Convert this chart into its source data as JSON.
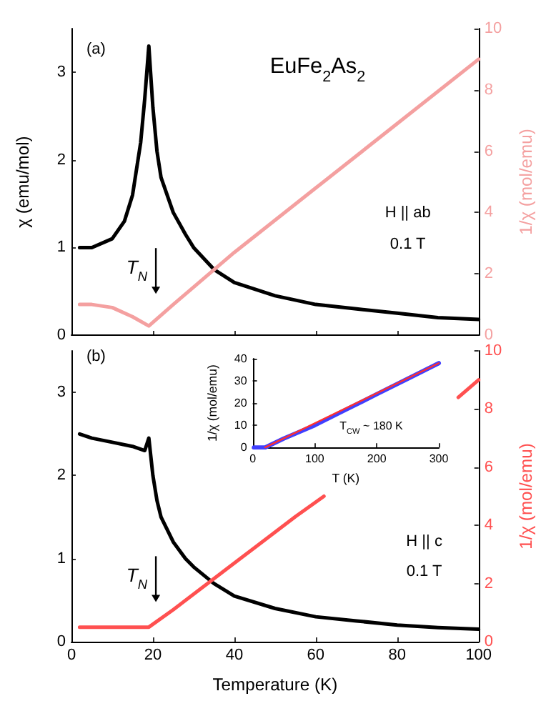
{
  "chart_data": [
    {
      "type": "line",
      "ylabel": "χ (emu/mol)",
      "y2label": "1/χ (mol/emu)",
      "xlim": [
        0,
        100
      ],
      "xticks": [
        {
          "value": 0,
          "label": null
        },
        {
          "value": 20,
          "label": null
        },
        {
          "value": 40,
          "label": null
        },
        {
          "value": 60,
          "label": null
        },
        {
          "value": 80,
          "label": null
        },
        {
          "value": 100,
          "label": null
        }
      ],
      "ylim": [
        0,
        3.5
      ],
      "yticks": [
        0,
        1,
        2,
        3
      ],
      "y2lim": [
        0,
        10
      ],
      "y2ticks": [
        0,
        2,
        4,
        6,
        8,
        10
      ],
      "tick_labels": "y",
      "line_style": "solid",
      "marker": "none",
      "annotations": [
        "(a)",
        "EuFe$_{2}$As$_{2}$",
        "T$_{N}$",
        "H || ab",
        "0.1 T"
      ],
      "series": [
        {
          "color": "#000000",
          "x": [
            2,
            5,
            10,
            13,
            15,
            17,
            18,
            19,
            20,
            21,
            22,
            25,
            28,
            30,
            35,
            40,
            50,
            60,
            70,
            80,
            90,
            100
          ],
          "values": [
            1.0,
            1.0,
            1.1,
            1.3,
            1.6,
            2.2,
            2.7,
            3.3,
            2.6,
            2.1,
            1.8,
            1.4,
            1.15,
            1.0,
            0.75,
            0.6,
            0.45,
            0.35,
            0.3,
            0.25,
            0.2,
            0.18
          ]
        },
        {
          "color": "#f4a0a0",
          "axis": "y2",
          "x": [
            2,
            5,
            10,
            15,
            19,
            25,
            40,
            60,
            80,
            100
          ],
          "values": [
            1.0,
            1.0,
            0.9,
            0.6,
            0.3,
            1.0,
            2.7,
            4.8,
            6.9,
            9.0
          ]
        }
      ]
    },
    {
      "type": "line",
      "xlabel": "Temperature (K)",
      "y2label": "1/χ (mol/emu)",
      "xlim": [
        0,
        100
      ],
      "xticks": [
        0,
        20,
        40,
        60,
        80,
        100
      ],
      "ylim": [
        0,
        3.5
      ],
      "yticks": [
        0,
        1,
        2,
        3
      ],
      "y2lim": [
        0,
        10
      ],
      "y2ticks": [
        0,
        2,
        4,
        6,
        8,
        10
      ],
      "line_style": "solid",
      "marker": "none",
      "annotations": [
        "(b)",
        "T$_{N}$",
        "H || c",
        "0.1 T"
      ],
      "series": [
        {
          "color": "#000000",
          "x": [
            2,
            5,
            10,
            15,
            18,
            19,
            20,
            21,
            22,
            25,
            28,
            30,
            35,
            40,
            50,
            60,
            70,
            80,
            90,
            100
          ],
          "values": [
            2.5,
            2.45,
            2.4,
            2.35,
            2.3,
            2.45,
            2.0,
            1.7,
            1.5,
            1.2,
            1.0,
            0.9,
            0.7,
            0.55,
            0.4,
            0.3,
            0.25,
            0.2,
            0.17,
            0.15
          ]
        },
        {
          "color": "#ff5050",
          "axis": "y2",
          "x": [
            2,
            10,
            19,
            25,
            40,
            55,
            62,
            80,
            95,
            100
          ],
          "values": [
            0.5,
            0.5,
            0.5,
            1.1,
            2.7,
            4.3,
            5.0,
            null,
            8.4,
            9.0
          ]
        }
      ]
    },
    {
      "type": "line",
      "xlabel": "T (K)",
      "ylabel": "1/χ (mol/emu)",
      "xlim": [
        0,
        300
      ],
      "xticks": [
        0,
        100,
        200,
        300
      ],
      "ylim": [
        0,
        40
      ],
      "yticks": [
        0,
        10,
        20,
        30,
        40
      ],
      "line_style": "solid",
      "marker": "none",
      "annotations": [
        "T$_{CW}$ ~ 180 K"
      ],
      "series": [
        {
          "color": "#4040ff",
          "x": [
            2,
            20,
            50,
            100,
            150,
            200,
            250,
            300
          ],
          "values": [
            0,
            0,
            4,
            10,
            17,
            24,
            31,
            38
          ]
        },
        {
          "color": "#ff3030",
          "x": [
            20,
            300
          ],
          "values": [
            0,
            38
          ]
        }
      ]
    }
  ]
}
